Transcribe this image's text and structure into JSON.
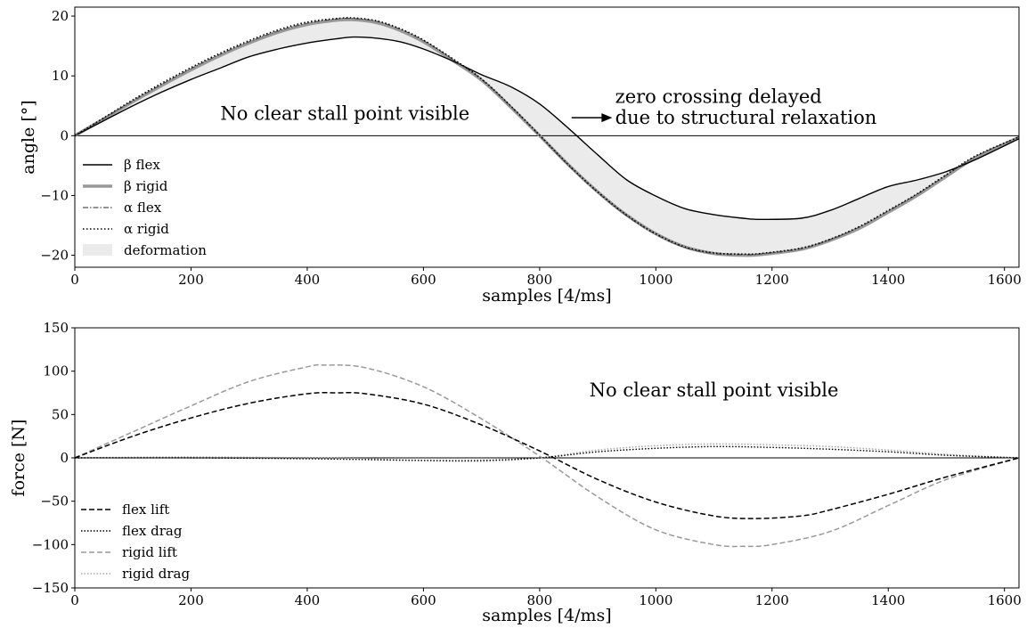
{
  "colors": {
    "black": "#000000",
    "gray": "#999999",
    "dark_gray": "#555555",
    "fill": "#ebebeb"
  },
  "chart_data": [
    {
      "type": "line",
      "xlabel": "samples [4/ms]",
      "ylabel": "angle [°]",
      "xlim": [
        0,
        1625
      ],
      "ylim": [
        -22,
        21.5
      ],
      "xticks": [
        0,
        200,
        400,
        600,
        800,
        1000,
        1200,
        1400,
        1600
      ],
      "yticks": [
        -20,
        -10,
        0,
        10,
        20
      ],
      "grid": false,
      "zero_line": true,
      "legend_position": "lower-left",
      "annotations": [
        {
          "text": "No clear stall point visible",
          "x": 465,
          "y": 3.7
        },
        {
          "text": "zero crossing delayed",
          "x": 930,
          "y": 6.5
        },
        {
          "text": "due to structural relaxation",
          "x": 930,
          "y": 3.0
        }
      ],
      "arrow": {
        "from": [
          855,
          3.0
        ],
        "to": [
          925,
          3.0
        ]
      },
      "series": [
        {
          "name": "β flex",
          "style": "solid-thin",
          "x": [
            0,
            50,
            100,
            150,
            200,
            250,
            300,
            350,
            400,
            450,
            480,
            520,
            560,
            600,
            650,
            700,
            750,
            800,
            850,
            900,
            950,
            1000,
            1050,
            1100,
            1150,
            1180,
            1250,
            1300,
            1350,
            1400,
            1450,
            1500,
            1550,
            1625
          ],
          "y": [
            0,
            2.5,
            5.0,
            7.3,
            9.4,
            11.3,
            13.2,
            14.5,
            15.5,
            16.2,
            16.5,
            16.3,
            15.7,
            14.5,
            12.5,
            10.2,
            8.2,
            5.3,
            1.2,
            -3.2,
            -7.4,
            -10.1,
            -12.2,
            -13.2,
            -13.8,
            -14.0,
            -13.8,
            -12.5,
            -10.5,
            -8.5,
            -7.4,
            -6.0,
            -4.0,
            -0.5
          ]
        },
        {
          "name": "β rigid",
          "style": "solid-thick-gray",
          "x": [
            0,
            50,
            100,
            150,
            200,
            250,
            300,
            350,
            400,
            450,
            480,
            520,
            560,
            600,
            650,
            700,
            750,
            800,
            850,
            900,
            950,
            1000,
            1050,
            1100,
            1150,
            1180,
            1250,
            1300,
            1350,
            1400,
            1450,
            1500,
            1550,
            1625
          ],
          "y": [
            0,
            2.8,
            5.7,
            8.4,
            11.0,
            13.4,
            15.5,
            17.3,
            18.6,
            19.3,
            19.4,
            18.9,
            17.6,
            15.7,
            12.6,
            9.3,
            4.8,
            0.0,
            -4.9,
            -9.4,
            -13.3,
            -16.4,
            -18.6,
            -19.7,
            -20.0,
            -19.9,
            -19.0,
            -17.5,
            -15.5,
            -12.8,
            -10.0,
            -6.8,
            -3.7,
            -0.3
          ]
        },
        {
          "name": "α flex",
          "style": "dashdot",
          "x": [
            0,
            50,
            100,
            150,
            200,
            250,
            300,
            350,
            400,
            450,
            480,
            520,
            560,
            600,
            650,
            700,
            750,
            800,
            850,
            900,
            950,
            1000,
            1050,
            1100,
            1150,
            1180,
            1250,
            1300,
            1350,
            1400,
            1450,
            1500,
            1550,
            1625
          ],
          "y": [
            0,
            2.9,
            5.8,
            8.6,
            11.2,
            13.6,
            15.7,
            17.5,
            18.8,
            19.5,
            19.6,
            19.1,
            17.8,
            15.9,
            12.8,
            9.4,
            4.9,
            0.0,
            -5.0,
            -9.5,
            -13.4,
            -16.5,
            -18.7,
            -19.7,
            -19.9,
            -19.8,
            -18.9,
            -17.4,
            -15.3,
            -12.6,
            -9.8,
            -6.6,
            -3.5,
            -0.2
          ]
        },
        {
          "name": "α rigid",
          "style": "dotted",
          "x": [
            0,
            50,
            100,
            150,
            200,
            250,
            300,
            350,
            400,
            450,
            480,
            520,
            560,
            600,
            650,
            700,
            750,
            800,
            850,
            900,
            950,
            1000,
            1050,
            1100,
            1150,
            1180,
            1250,
            1300,
            1350,
            1400,
            1450,
            1500,
            1550,
            1625
          ],
          "y": [
            0,
            3.0,
            6.0,
            8.8,
            11.4,
            13.8,
            15.9,
            17.7,
            19.0,
            19.6,
            19.7,
            19.2,
            17.9,
            16.0,
            12.9,
            9.5,
            5.0,
            0.1,
            -4.9,
            -9.4,
            -13.3,
            -16.4,
            -18.6,
            -19.6,
            -19.8,
            -19.7,
            -18.8,
            -17.3,
            -15.2,
            -12.5,
            -9.7,
            -6.5,
            -3.4,
            -0.2
          ]
        }
      ],
      "fill_between": {
        "name": "deformation",
        "between": [
          "β flex",
          "β rigid"
        ]
      }
    },
    {
      "type": "line",
      "xlabel": "samples [4/ms]",
      "ylabel": "force [N]",
      "xlim": [
        0,
        1625
      ],
      "ylim": [
        -150,
        150
      ],
      "xticks": [
        0,
        200,
        400,
        600,
        800,
        1000,
        1200,
        1400,
        1600
      ],
      "yticks": [
        -150,
        -100,
        -50,
        0,
        50,
        100,
        150
      ],
      "grid": false,
      "zero_line": true,
      "legend_position": "lower-left",
      "annotations": [
        {
          "text": "No clear stall point visible",
          "x": 1100,
          "y": 78
        }
      ],
      "series": [
        {
          "name": "flex lift",
          "style": "dashed-black",
          "x": [
            0,
            100,
            200,
            300,
            400,
            450,
            500,
            600,
            700,
            800,
            900,
            1000,
            1100,
            1170,
            1250,
            1300,
            1400,
            1500,
            1625
          ],
          "y": [
            0,
            25,
            46,
            63,
            74,
            75,
            74,
            62,
            38,
            8,
            -25,
            -51,
            -67,
            -70,
            -67,
            -60,
            -42,
            -22,
            0
          ]
        },
        {
          "name": "flex drag",
          "style": "dotted-black",
          "x": [
            0,
            200,
            400,
            500,
            600,
            700,
            800,
            900,
            1000,
            1100,
            1200,
            1300,
            1400,
            1500,
            1625
          ],
          "y": [
            0,
            0,
            -1,
            -2,
            -3,
            -3,
            0,
            7,
            11,
            13,
            12,
            10,
            7,
            3,
            0
          ]
        },
        {
          "name": "rigid lift",
          "style": "dashed-gray",
          "x": [
            0,
            100,
            200,
            300,
            400,
            430,
            500,
            600,
            700,
            800,
            900,
            1000,
            1100,
            1150,
            1200,
            1300,
            1400,
            1500,
            1625
          ],
          "y": [
            0,
            30,
            60,
            88,
            105,
            107,
            104,
            82,
            45,
            2,
            -45,
            -83,
            -100,
            -102,
            -100,
            -85,
            -55,
            -25,
            0
          ]
        },
        {
          "name": "rigid drag",
          "style": "dotted-gray",
          "x": [
            0,
            200,
            400,
            500,
            600,
            700,
            800,
            900,
            1000,
            1100,
            1200,
            1300,
            1400,
            1500,
            1625
          ],
          "y": [
            0,
            1,
            0,
            -1,
            -3,
            -4,
            0,
            9,
            14,
            16,
            15,
            13,
            9,
            4,
            0
          ]
        }
      ]
    }
  ]
}
